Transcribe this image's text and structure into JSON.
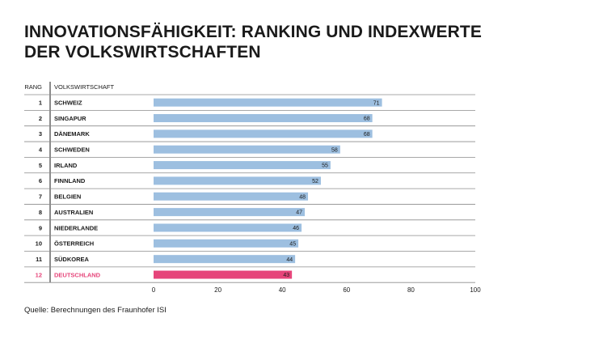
{
  "title_line1": "INNOVATIONSFÄHIGKEIT: RANKING UND INDEXWERTE",
  "title_line2": "DER VOLKSWIRTSCHAFTEN",
  "source": "Quelle: Berechnungen des Fraunhofer ISI",
  "colors": {
    "bar": "#9dbfe0",
    "highlight": "#e6457a",
    "text": "#1a1a1a",
    "rule": "#8c8c8c"
  },
  "chart_data": {
    "type": "bar",
    "orientation": "horizontal",
    "title": "INNOVATIONSFÄHIGKEIT: RANKING UND INDEXWERTE DER VOLKSWIRTSCHAFTEN",
    "column_headers": {
      "rank": "RANG",
      "country": "VOLKSWIRTSCHAFT"
    },
    "ranks": [
      "1",
      "2",
      "3",
      "4",
      "5",
      "6",
      "7",
      "8",
      "9",
      "10",
      "11",
      "12"
    ],
    "categories": [
      "SCHWEIZ",
      "SINGAPUR",
      "DÄNEMARK",
      "SCHWEDEN",
      "IRLAND",
      "FINNLAND",
      "BELGIEN",
      "AUSTRALIEN",
      "NIEDERLANDE",
      "ÖSTERREICH",
      "SÜDKOREA",
      "DEUTSCHLAND"
    ],
    "values": [
      71,
      68,
      68,
      58,
      55,
      52,
      48,
      47,
      46,
      45,
      44,
      43
    ],
    "highlight": "DEUTSCHLAND",
    "xlim": [
      0,
      100
    ],
    "xticks": [
      "0",
      "20",
      "40",
      "60",
      "80",
      "100"
    ]
  }
}
